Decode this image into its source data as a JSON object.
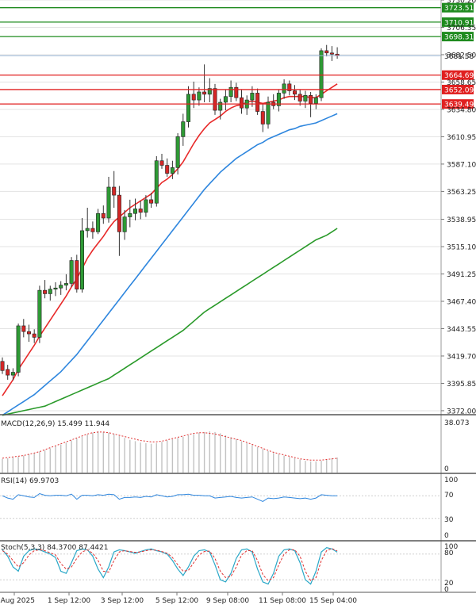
{
  "chart_data": {
    "type": "candlestick",
    "symbol": "Gold",
    "x_tick_labels": [
      "8 Aug 2025",
      "1 Sep 12:00",
      "3 Sep 12:00",
      "5 Sep 12:00",
      "9 Sep 08:00",
      "11 Sep 08:00",
      "15 Sep 04:00"
    ],
    "y_axis_ticks": [
      "3372.00",
      "3395.85",
      "3419.70",
      "3443.55",
      "3467.40",
      "3491.25",
      "3515.10",
      "3538.95",
      "3563.25",
      "3587.10",
      "3610.95",
      "3634.80",
      "3658.65",
      "3682.50",
      "3706.35",
      "3730.20"
    ],
    "ylim": [
      3368.5,
      3730.2
    ],
    "current_price": "3681.58",
    "levels": {
      "resistance": [
        {
          "label": "3723.51",
          "value": 3723.51
        },
        {
          "label": "3710.91",
          "value": 3710.91
        },
        {
          "label": "3698.31",
          "value": 3698.31
        }
      ],
      "support": [
        {
          "label": "3664.69",
          "value": 3664.69
        },
        {
          "label": "3652.09",
          "value": 3652.09
        },
        {
          "label": "3639.49",
          "value": 3639.49
        }
      ]
    },
    "colors": {
      "bull": "#2e9a35",
      "bear": "#d42626",
      "wick": "#333333",
      "ma_fast": "#e82a2a",
      "ma_mid": "#2e86de",
      "ma_slow": "#2a9a2a",
      "resistance": "#1f8b1f",
      "support": "#e02020",
      "grid": "#e3e3e3"
    },
    "ohlc": [
      [
        3415.0,
        3418.5,
        3404.0,
        3407.0
      ],
      [
        3408.0,
        3412.0,
        3399.0,
        3403.0
      ],
      [
        3403.0,
        3409.0,
        3398.5,
        3405.5
      ],
      [
        3405.5,
        3448.0,
        3402.0,
        3446.0
      ],
      [
        3446.0,
        3452.0,
        3436.0,
        3441.0
      ],
      [
        3441.0,
        3447.0,
        3432.0,
        3439.0
      ],
      [
        3439.0,
        3443.0,
        3431.0,
        3436.0
      ],
      [
        3436.0,
        3481.0,
        3431.0,
        3477.0
      ],
      [
        3477.0,
        3486.0,
        3470.0,
        3474.0
      ],
      [
        3474.0,
        3481.0,
        3468.0,
        3478.0
      ],
      [
        3478.0,
        3484.0,
        3472.0,
        3479.0
      ],
      [
        3479.0,
        3485.0,
        3473.0,
        3481.5
      ],
      [
        3481.5,
        3491.0,
        3477.0,
        3483.0
      ],
      [
        3483.0,
        3506.0,
        3480.0,
        3503.0
      ],
      [
        3503.0,
        3508.0,
        3475.0,
        3478.0
      ],
      [
        3478.0,
        3540.0,
        3475.0,
        3529.0
      ],
      [
        3529.0,
        3549.0,
        3523.0,
        3531.0
      ],
      [
        3531.0,
        3537.0,
        3522.0,
        3528.0
      ],
      [
        3528.0,
        3548.0,
        3526.0,
        3544.0
      ],
      [
        3544.0,
        3551.0,
        3535.0,
        3540.0
      ],
      [
        3540.0,
        3576.0,
        3536.0,
        3567.0
      ],
      [
        3567.0,
        3581.0,
        3549.0,
        3560.0
      ],
      [
        3560.0,
        3568.0,
        3507.0,
        3528.0
      ],
      [
        3528.0,
        3547.0,
        3521.0,
        3541.0
      ],
      [
        3541.0,
        3556.0,
        3532.0,
        3544.0
      ],
      [
        3544.0,
        3557.0,
        3538.0,
        3548.0
      ],
      [
        3548.0,
        3555.0,
        3539.0,
        3545.0
      ],
      [
        3545.0,
        3560.0,
        3541.0,
        3556.0
      ],
      [
        3556.0,
        3562.0,
        3549.0,
        3553.0
      ],
      [
        3553.0,
        3594.0,
        3550.0,
        3590.0
      ],
      [
        3590.0,
        3596.0,
        3583.0,
        3586.0
      ],
      [
        3586.0,
        3592.0,
        3576.0,
        3579.0
      ],
      [
        3579.0,
        3590.0,
        3574.0,
        3584.0
      ],
      [
        3584.0,
        3614.0,
        3578.0,
        3611.0
      ],
      [
        3611.0,
        3631.0,
        3603.0,
        3624.0
      ],
      [
        3624.0,
        3655.0,
        3619.0,
        3648.0
      ],
      [
        3648.0,
        3659.0,
        3636.0,
        3643.0
      ],
      [
        3643.0,
        3654.0,
        3638.0,
        3650.0
      ],
      [
        3650.0,
        3674.0,
        3641.0,
        3648.0
      ],
      [
        3648.0,
        3662.0,
        3641.0,
        3653.0
      ],
      [
        3653.0,
        3657.0,
        3630.0,
        3634.0
      ],
      [
        3634.0,
        3644.0,
        3626.0,
        3641.0
      ],
      [
        3641.0,
        3652.0,
        3634.0,
        3646.0
      ],
      [
        3646.0,
        3660.0,
        3641.0,
        3654.0
      ],
      [
        3654.0,
        3658.0,
        3642.0,
        3645.0
      ],
      [
        3645.0,
        3652.0,
        3631.0,
        3636.0
      ],
      [
        3636.0,
        3647.0,
        3630.0,
        3643.0
      ],
      [
        3643.0,
        3655.0,
        3637.0,
        3649.0
      ],
      [
        3649.0,
        3653.0,
        3630.0,
        3633.0
      ],
      [
        3633.0,
        3640.0,
        3615.0,
        3622.0
      ],
      [
        3622.0,
        3646.0,
        3618.0,
        3641.0
      ],
      [
        3641.0,
        3648.0,
        3635.0,
        3638.0
      ],
      [
        3638.0,
        3652.0,
        3633.0,
        3649.0
      ],
      [
        3649.0,
        3661.0,
        3644.0,
        3657.0
      ],
      [
        3657.0,
        3660.0,
        3647.0,
        3651.0
      ],
      [
        3651.0,
        3656.0,
        3643.0,
        3648.0
      ],
      [
        3648.0,
        3652.0,
        3638.0,
        3642.0
      ],
      [
        3642.0,
        3651.0,
        3636.0,
        3647.0
      ],
      [
        3647.0,
        3650.0,
        3628.0,
        3640.0
      ],
      [
        3640.0,
        3648.0,
        3635.0,
        3645.0
      ],
      [
        3645.0,
        3688.0,
        3642.0,
        3686.0
      ],
      [
        3686.0,
        3691.0,
        3681.0,
        3684.0
      ],
      [
        3684.0,
        3690.0,
        3677.0,
        3683.0
      ],
      [
        3683.0,
        3689.0,
        3679.0,
        3681.58
      ]
    ],
    "moving_averages": [
      {
        "key": "ma_fast",
        "values": [
          3385.0,
          3392.0,
          3399.0,
          3408.0,
          3415.0,
          3422.0,
          3429.0,
          3437.0,
          3444.0,
          3451.0,
          3458.0,
          3465.0,
          3472.0,
          3480.0,
          3487.0,
          3496.0,
          3505.0,
          3512.0,
          3518.0,
          3524.0,
          3531.0,
          3537.0,
          3541.0,
          3545.0,
          3549.0,
          3552.0,
          3555.0,
          3558.0,
          3561.0,
          3566.0,
          3571.0,
          3574.0,
          3578.0,
          3583.0,
          3589.0,
          3597.0,
          3605.0,
          3612.0,
          3618.0,
          3623.0,
          3626.0,
          3629.0,
          3633.0,
          3636.0,
          3638.0,
          3639.0,
          3641.0,
          3642.0,
          3641.0,
          3640.0,
          3641.0,
          3642.0,
          3643.0,
          3645.0,
          3646.0,
          3646.0,
          3646.0,
          3646.0,
          3645.0,
          3645.0,
          3648.0,
          3651.0,
          3654.0,
          3657.0
        ]
      },
      {
        "key": "ma_mid",
        "values": [
          3368.0,
          3371.0,
          3374.0,
          3377.0,
          3380.0,
          3383.0,
          3386.0,
          3390.0,
          3394.0,
          3398.0,
          3402.0,
          3406.0,
          3411.0,
          3416.0,
          3421.0,
          3427.0,
          3433.0,
          3439.0,
          3445.0,
          3451.0,
          3457.0,
          3463.0,
          3469.0,
          3475.0,
          3481.0,
          3487.0,
          3493.0,
          3499.0,
          3505.0,
          3511.0,
          3517.0,
          3523.0,
          3529.0,
          3535.0,
          3541.0,
          3547.0,
          3553.0,
          3559.0,
          3565.0,
          3570.0,
          3575.0,
          3580.0,
          3584.0,
          3588.0,
          3592.0,
          3595.0,
          3598.0,
          3601.0,
          3604.0,
          3606.0,
          3609.0,
          3611.0,
          3613.0,
          3615.0,
          3617.0,
          3618.0,
          3620.0,
          3621.0,
          3622.0,
          3623.0,
          3625.0,
          3627.0,
          3629.0,
          3631.0
        ]
      },
      {
        "key": "ma_slow",
        "values": [
          3368.0,
          3369.0,
          3370.0,
          3371.0,
          3372.0,
          3373.0,
          3374.0,
          3375.0,
          3376.0,
          3378.0,
          3380.0,
          3382.0,
          3384.0,
          3386.0,
          3388.0,
          3390.0,
          3392.0,
          3394.0,
          3396.0,
          3398.0,
          3400.0,
          3403.0,
          3406.0,
          3409.0,
          3412.0,
          3415.0,
          3418.0,
          3421.0,
          3424.0,
          3427.0,
          3430.0,
          3433.0,
          3436.0,
          3439.0,
          3442.0,
          3446.0,
          3450.0,
          3454.0,
          3458.0,
          3461.0,
          3464.0,
          3467.0,
          3470.0,
          3473.0,
          3476.0,
          3479.0,
          3482.0,
          3485.0,
          3488.0,
          3491.0,
          3494.0,
          3497.0,
          3500.0,
          3503.0,
          3506.0,
          3509.0,
          3512.0,
          3515.0,
          3518.0,
          3521.0,
          3523.0,
          3525.0,
          3528.0,
          3531.0
        ]
      }
    ],
    "macd": {
      "label": "MACD(12,26,9) 15.499 11.944",
      "axis_labels": [
        "38.073",
        "0"
      ],
      "ylim": [
        0,
        40
      ],
      "histogram": [
        10.5,
        11.0,
        11.5,
        12.0,
        13.0,
        14.0,
        15.0,
        16.0,
        17.0,
        18.5,
        20.0,
        21.5,
        23.0,
        24.5,
        26.0,
        27.5,
        29.0,
        30.5,
        31.5,
        31.0,
        30.5,
        29.5,
        28.0,
        26.5,
        25.0,
        24.0,
        23.0,
        22.5,
        22.0,
        22.5,
        23.5,
        24.5,
        25.5,
        26.5,
        27.5,
        28.5,
        29.5,
        30.5,
        31.0,
        31.5,
        31.0,
        30.0,
        28.5,
        27.0,
        25.5,
        24.0,
        22.5,
        21.0,
        19.5,
        18.0,
        16.5,
        15.0,
        14.0,
        13.0,
        12.0,
        11.0,
        10.0,
        9.0,
        8.5,
        8.5,
        9.0,
        10.0,
        11.0,
        11.5
      ],
      "signal": [
        11.0,
        11.5,
        12.0,
        12.5,
        13.0,
        14.0,
        15.0,
        16.0,
        17.5,
        19.0,
        20.5,
        22.0,
        23.5,
        25.0,
        26.5,
        28.0,
        29.5,
        30.5,
        31.0,
        31.0,
        30.5,
        29.5,
        28.5,
        27.5,
        26.5,
        25.5,
        24.5,
        24.0,
        23.5,
        23.5,
        24.0,
        25.0,
        26.0,
        27.0,
        28.0,
        29.0,
        30.0,
        30.5,
        30.5,
        30.0,
        29.5,
        28.5,
        27.5,
        26.5,
        25.5,
        24.5,
        23.0,
        21.5,
        20.0,
        18.5,
        17.0,
        15.5,
        14.5,
        13.5,
        12.5,
        11.5,
        10.5,
        10.0,
        9.5,
        9.5,
        9.5,
        10.0,
        10.5,
        11.0
      ]
    },
    "rsi": {
      "label": "RSI(14) 69.9703",
      "axis_labels": [
        "100",
        "70",
        "30",
        "0"
      ],
      "ylim": [
        0,
        100
      ],
      "values": [
        70,
        66,
        64,
        72,
        70,
        68,
        67,
        74,
        71,
        70,
        71,
        71,
        70,
        73,
        64,
        71,
        71,
        70,
        72,
        71,
        73,
        72,
        64,
        67,
        67,
        68,
        67,
        69,
        68,
        72,
        70,
        68,
        69,
        72,
        72,
        73,
        71,
        71,
        70,
        70,
        66,
        67,
        68,
        69,
        67,
        66,
        67,
        68,
        64,
        60,
        66,
        65,
        66,
        68,
        67,
        66,
        65,
        66,
        64,
        66,
        72,
        71,
        70,
        69.97
      ]
    },
    "stochastic": {
      "label": "Stoch(5,3,3) 84.3700 87.4421",
      "axis_labels": [
        "100",
        "80",
        "20",
        "0"
      ],
      "ylim": [
        0,
        100
      ],
      "k": [
        90,
        75,
        50,
        40,
        75,
        88,
        92,
        90,
        85,
        80,
        72,
        40,
        35,
        60,
        88,
        92,
        90,
        75,
        45,
        25,
        50,
        85,
        90,
        88,
        85,
        82,
        86,
        90,
        92,
        88,
        85,
        80,
        65,
        45,
        30,
        50,
        75,
        88,
        90,
        85,
        55,
        20,
        15,
        35,
        70,
        90,
        92,
        85,
        45,
        15,
        10,
        35,
        75,
        90,
        92,
        88,
        60,
        20,
        10,
        40,
        85,
        95,
        92,
        84.37
      ],
      "d": [
        88,
        80,
        65,
        50,
        60,
        78,
        88,
        90,
        88,
        83,
        78,
        58,
        45,
        50,
        70,
        85,
        90,
        82,
        65,
        40,
        38,
        65,
        85,
        88,
        86,
        84,
        85,
        88,
        90,
        89,
        86,
        82,
        72,
        55,
        40,
        42,
        60,
        78,
        86,
        87,
        70,
        40,
        25,
        28,
        50,
        78,
        88,
        88,
        65,
        32,
        18,
        25,
        55,
        80,
        90,
        90,
        75,
        40,
        18,
        25,
        65,
        88,
        93,
        87.44
      ]
    }
  }
}
